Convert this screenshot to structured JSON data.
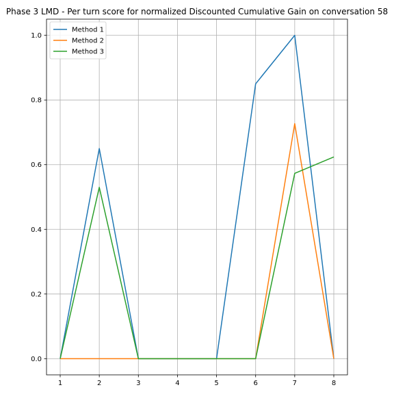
{
  "chart_data": {
    "type": "line",
    "title": "Phase 3 LMD - Per turn score for normalized Discounted Cumulative Gain on conversation 58",
    "xlabel": "",
    "ylabel": "",
    "x": [
      1,
      2,
      3,
      4,
      5,
      6,
      7,
      8
    ],
    "xlim": [
      0.65,
      8.35
    ],
    "ylim": [
      -0.05,
      1.05
    ],
    "xticks": [
      "1",
      "2",
      "3",
      "4",
      "5",
      "6",
      "7",
      "8"
    ],
    "yticks": [
      "0.0",
      "0.2",
      "0.4",
      "0.6",
      "0.8",
      "1.0"
    ],
    "ytick_values": [
      0.0,
      0.2,
      0.4,
      0.6,
      0.8,
      1.0
    ],
    "grid": true,
    "legend_position": "top-left",
    "series": [
      {
        "name": "Method 1",
        "color": "#1f77b4",
        "values": [
          0.0,
          0.65,
          0.0,
          0.0,
          0.0,
          0.85,
          1.0,
          0.0
        ]
      },
      {
        "name": "Method 2",
        "color": "#ff7f0e",
        "values": [
          0.0,
          0.0,
          0.0,
          0.0,
          0.0,
          0.0,
          0.727,
          0.0
        ]
      },
      {
        "name": "Method 3",
        "color": "#2ca02c",
        "values": [
          0.0,
          0.53,
          0.0,
          0.0,
          0.0,
          0.0,
          0.573,
          0.624
        ]
      }
    ]
  }
}
